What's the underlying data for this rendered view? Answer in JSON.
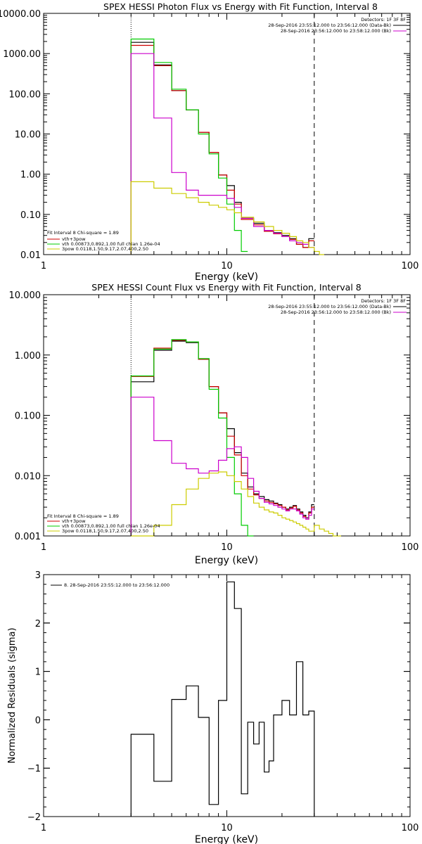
{
  "chart_data": [
    {
      "type": "line",
      "title": "SPEX HESSI Photon Flux vs Energy with Fit Function, Interval 8",
      "xlabel": "Energy (keV)",
      "ylabel": "",
      "xscale": "log",
      "yscale": "log",
      "xlim": [
        1,
        100
      ],
      "ylim": [
        0.01,
        10000
      ],
      "xticks": [
        {
          "v": 1,
          "label": "1"
        },
        {
          "v": 10,
          "label": "10"
        },
        {
          "v": 100,
          "label": "100"
        }
      ],
      "yticks": [
        {
          "v": 10000,
          "label": "10000.00"
        },
        {
          "v": 1000,
          "label": "1000.00"
        },
        {
          "v": 100,
          "label": "100.00"
        },
        {
          "v": 10,
          "label": "10.00"
        },
        {
          "v": 1,
          "label": "1.00"
        },
        {
          "v": 0.1,
          "label": "0.10"
        },
        {
          "v": 0.01,
          "label": "0.01"
        }
      ],
      "vlines": [
        {
          "x": 3,
          "style": "dotted"
        },
        {
          "x": 30,
          "style": "dashed"
        }
      ],
      "legend_topright": {
        "position": "top-right",
        "header": "Detectors: 1F 3F 8F",
        "entries": [
          {
            "text": "28-Sep-2016 23:55:12.000 to 23:56:12.000 (Data-Bk)",
            "color": "#000000"
          },
          {
            "text": "28-Sep-2016 23:56:12.000 to 23:58:12.000 (Bk)",
            "color": "#cc00cc"
          }
        ]
      },
      "legend_fit": {
        "position": "bottom-left",
        "header": "Fit Interval  8    Chi-square = 1.89",
        "entries": [
          {
            "text": "vth+3pow",
            "color": "#cc0000"
          },
          {
            "text": "vth 0.00873,0.892,1.00  full chian 1.26e-04",
            "color": "#00cc00"
          },
          {
            "text": "3pow 0.0118,1.50,9.17,2.07,400,2.50",
            "color": "#cccc00"
          }
        ]
      },
      "series": [
        {
          "color": "#000000",
          "edges": [
            3,
            3.5,
            4,
            4.5,
            5,
            5.5,
            6,
            6.5,
            7,
            7.5,
            8,
            8.5,
            9,
            9.5,
            10,
            10.5,
            11,
            11.5,
            12,
            13,
            14,
            15,
            16,
            17,
            18,
            19,
            20,
            21,
            22,
            23,
            24,
            25,
            26,
            27,
            28,
            29,
            30
          ],
          "values": [
            1900,
            1900,
            520,
            520,
            120,
            120,
            40,
            40,
            11,
            11,
            3.5,
            3.5,
            0.95,
            0.95,
            0.52,
            0.52,
            0.2,
            0.2,
            0.08,
            0.08,
            0.06,
            0.06,
            0.04,
            0.04,
            0.035,
            0.035,
            0.03,
            0.03,
            0.025,
            0.025,
            0.018,
            0.018,
            0.015,
            0.015,
            0.025,
            0.025
          ]
        },
        {
          "color": "#cc0000",
          "edges": [
            3,
            3.5,
            4,
            4.5,
            5,
            5.5,
            6,
            6.5,
            7,
            7.5,
            8,
            8.5,
            9,
            9.5,
            10,
            10.5,
            11,
            11.5,
            12,
            13,
            14,
            15,
            16,
            17,
            18,
            19,
            20,
            21,
            22,
            23,
            24,
            25,
            26,
            27,
            28,
            29,
            30
          ],
          "values": [
            1600,
            1600,
            500,
            500,
            120,
            120,
            40,
            40,
            11,
            11,
            3.5,
            3.5,
            0.95,
            0.95,
            0.4,
            0.4,
            0.18,
            0.18,
            0.075,
            0.075,
            0.055,
            0.055,
            0.038,
            0.038,
            0.033,
            0.033,
            0.028,
            0.028,
            0.024,
            0.024,
            0.018,
            0.018,
            0.015,
            0.015,
            0.022,
            0.022
          ]
        },
        {
          "color": "#00cc00",
          "edges": [
            3,
            3.5,
            4,
            4.5,
            5,
            5.5,
            6,
            6.5,
            7,
            7.5,
            8,
            8.5,
            9,
            9.5,
            10,
            10.5,
            11,
            11.5,
            12,
            13
          ],
          "values": [
            2300,
            2300,
            600,
            600,
            130,
            130,
            40,
            40,
            10,
            10,
            3.2,
            3.2,
            0.8,
            0.8,
            0.18,
            0.18,
            0.04,
            0.04,
            0.012
          ]
        },
        {
          "color": "#cc00cc",
          "edges": [
            3,
            3.5,
            4,
            4.5,
            5,
            5.5,
            6,
            6.5,
            7,
            7.5,
            8,
            8.5,
            9,
            9.5,
            10,
            10.5,
            11,
            11.5,
            12,
            13,
            14,
            15,
            16,
            17,
            18,
            19,
            20,
            21,
            22,
            23,
            24,
            25,
            26,
            27,
            28,
            29,
            30
          ],
          "values": [
            1000,
            1000,
            25,
            25,
            1.1,
            1.1,
            0.4,
            0.4,
            0.3,
            0.3,
            0.3,
            0.3,
            0.3,
            0.3,
            0.25,
            0.25,
            0.15,
            0.15,
            0.08,
            0.08,
            0.05,
            0.05,
            0.04,
            0.04,
            0.034,
            0.034,
            0.028,
            0.028,
            0.022,
            0.022,
            0.02,
            0.02,
            0.018,
            0.018,
            0.015,
            0.015
          ]
        },
        {
          "color": "#cccc00",
          "edges": [
            3,
            3.5,
            4,
            4.5,
            5,
            5.5,
            6,
            6.5,
            7,
            7.5,
            8,
            8.5,
            9,
            9.5,
            10,
            10.5,
            11,
            11.5,
            12,
            13,
            14,
            15,
            16,
            17,
            18,
            19,
            20,
            21,
            22,
            23,
            24,
            25,
            26,
            27,
            28,
            29,
            30,
            32,
            34
          ],
          "values": [
            0.65,
            0.65,
            0.45,
            0.45,
            0.33,
            0.33,
            0.26,
            0.26,
            0.2,
            0.2,
            0.17,
            0.17,
            0.15,
            0.15,
            0.13,
            0.13,
            0.11,
            0.11,
            0.085,
            0.085,
            0.065,
            0.065,
            0.05,
            0.05,
            0.04,
            0.04,
            0.034,
            0.034,
            0.028,
            0.028,
            0.022,
            0.022,
            0.02,
            0.02,
            0.015,
            0.015,
            0.012,
            0.01
          ]
        }
      ]
    },
    {
      "type": "line",
      "title": "SPEX HESSI Count Flux vs Energy with Fit Function, Interval 8",
      "xlabel": "Energy (keV)",
      "ylabel": "",
      "xscale": "log",
      "yscale": "log",
      "xlim": [
        1,
        100
      ],
      "ylim": [
        0.001,
        10
      ],
      "xticks": [
        {
          "v": 1,
          "label": "1"
        },
        {
          "v": 10,
          "label": "10"
        },
        {
          "v": 100,
          "label": "100"
        }
      ],
      "yticks": [
        {
          "v": 10,
          "label": "10.000"
        },
        {
          "v": 1,
          "label": "1.000"
        },
        {
          "v": 0.1,
          "label": "0.100"
        },
        {
          "v": 0.01,
          "label": "0.010"
        },
        {
          "v": 0.001,
          "label": "0.001"
        }
      ],
      "vlines": [
        {
          "x": 3,
          "style": "dotted"
        },
        {
          "x": 30,
          "style": "dashed"
        }
      ],
      "legend_topright": {
        "position": "top-right",
        "header": "Detectors: 1F 3F 8F",
        "entries": [
          {
            "text": "28-Sep-2016 23:55:12.000 to 23:56:12.000 (Data-Bk)",
            "color": "#000000"
          },
          {
            "text": "28-Sep-2016 23:56:12.000 to 23:58:12.000 (Bk)",
            "color": "#cc00cc"
          }
        ]
      },
      "legend_fit": {
        "position": "bottom-left",
        "header": "Fit Interval  8    Chi-square = 1.89",
        "entries": [
          {
            "text": "vth+3pow",
            "color": "#cc0000"
          },
          {
            "text": "vth 0.00873,0.892,1.00  full chian 1.26e-04",
            "color": "#00cc00"
          },
          {
            "text": "3pow 0.0118,1.50,9.17,2.07,400,2.50",
            "color": "#cccc00"
          }
        ]
      },
      "series": [
        {
          "color": "#000000",
          "edges": [
            3,
            4,
            5,
            6,
            7,
            8,
            9,
            10,
            11,
            12,
            13,
            14,
            15,
            16,
            17,
            18,
            19,
            20,
            21,
            22,
            23,
            24,
            25,
            26,
            27,
            28,
            29,
            30
          ],
          "values": [
            0.36,
            1.2,
            1.7,
            1.6,
            0.85,
            0.3,
            0.11,
            0.06,
            0.024,
            0.011,
            0.0065,
            0.005,
            0.0045,
            0.004,
            0.0038,
            0.0035,
            0.0033,
            0.003,
            0.0028,
            0.003,
            0.0032,
            0.0028,
            0.0025,
            0.0022,
            0.002,
            0.0025,
            0.0033
          ]
        },
        {
          "color": "#cc0000",
          "edges": [
            3,
            4,
            5,
            6,
            7,
            8,
            9,
            10,
            11,
            12,
            13,
            14,
            15,
            16,
            17,
            18,
            19,
            20,
            21,
            22,
            23,
            24,
            25,
            26,
            27,
            28,
            29,
            30
          ],
          "values": [
            0.44,
            1.3,
            1.75,
            1.65,
            0.85,
            0.3,
            0.11,
            0.045,
            0.022,
            0.01,
            0.006,
            0.0048,
            0.0042,
            0.0038,
            0.0036,
            0.0034,
            0.0032,
            0.003,
            0.0027,
            0.0029,
            0.0031,
            0.0027,
            0.0024,
            0.0021,
            0.0019,
            0.0024,
            0.003
          ]
        },
        {
          "color": "#00cc00",
          "edges": [
            3,
            4,
            5,
            6,
            7,
            8,
            9,
            10,
            11,
            12,
            13,
            14
          ],
          "values": [
            0.45,
            1.25,
            1.8,
            1.65,
            0.87,
            0.27,
            0.09,
            0.02,
            0.005,
            0.0015,
            0.001
          ]
        },
        {
          "color": "#cc00cc",
          "edges": [
            3,
            4,
            5,
            6,
            7,
            8,
            9,
            10,
            11,
            12,
            13,
            14,
            15,
            16,
            17,
            18,
            19,
            20,
            21,
            22,
            23,
            24,
            25,
            26,
            27,
            28,
            29,
            30
          ],
          "values": [
            0.2,
            0.038,
            0.016,
            0.013,
            0.011,
            0.012,
            0.018,
            0.028,
            0.03,
            0.02,
            0.009,
            0.0055,
            0.0042,
            0.0036,
            0.0034,
            0.0032,
            0.003,
            0.0028,
            0.0026,
            0.0028,
            0.0028,
            0.0026,
            0.0023,
            0.002,
            0.0019,
            0.0022,
            0.0028
          ]
        },
        {
          "color": "#cccc00",
          "edges": [
            3,
            4,
            5,
            6,
            7,
            8,
            9,
            10,
            11,
            12,
            13,
            14,
            15,
            16,
            17,
            18,
            19,
            20,
            21,
            22,
            23,
            24,
            25,
            26,
            27,
            28,
            29,
            30,
            32,
            34,
            36,
            38,
            40,
            42
          ],
          "values": [
            0.001,
            0.0015,
            0.0033,
            0.006,
            0.009,
            0.011,
            0.0115,
            0.01,
            0.008,
            0.006,
            0.0045,
            0.0035,
            0.003,
            0.0027,
            0.0025,
            0.0024,
            0.0022,
            0.002,
            0.0019,
            0.0018,
            0.0017,
            0.0016,
            0.0015,
            0.0014,
            0.0013,
            0.0012,
            0.0012,
            0.0015,
            0.0013,
            0.0012,
            0.0011,
            0.001,
            0.001
          ]
        }
      ]
    },
    {
      "type": "line",
      "title": "",
      "xlabel": "Energy (keV)",
      "ylabel": "Normalized Residuals (sigma)",
      "xscale": "log",
      "yscale": "linear",
      "xlim": [
        1,
        100
      ],
      "ylim": [
        -2,
        3
      ],
      "xticks": [
        {
          "v": 1,
          "label": "1"
        },
        {
          "v": 10,
          "label": "10"
        },
        {
          "v": 100,
          "label": "100"
        }
      ],
      "yticks": [
        {
          "v": 3,
          "label": "3"
        },
        {
          "v": 2,
          "label": "2"
        },
        {
          "v": 1,
          "label": "1"
        },
        {
          "v": 0,
          "label": "0"
        },
        {
          "v": -1,
          "label": "−1"
        },
        {
          "v": -2,
          "label": "−2"
        }
      ],
      "legend_topleft": {
        "position": "top-left",
        "entries": [
          {
            "text": "8. 28-Sep-2016 23:55:12.000 to 23:56:12.000",
            "color": "#000000"
          }
        ]
      },
      "series": [
        {
          "color": "#000000",
          "edges": [
            3,
            4,
            5,
            6,
            7,
            8,
            9,
            10,
            11,
            12,
            13,
            14,
            15,
            16,
            17,
            18,
            19,
            20,
            21,
            22,
            23,
            24,
            25,
            26,
            27,
            28,
            29,
            30
          ],
          "values": [
            -0.3,
            -1.27,
            0.42,
            0.7,
            0.05,
            -1.75,
            0.4,
            2.85,
            2.3,
            -1.53,
            -0.05,
            -0.5,
            -0.05,
            -1.08,
            -0.85,
            0.1,
            0.1,
            0.4,
            0.4,
            0.1,
            0.1,
            1.2,
            1.2,
            0.1,
            0.1,
            0.18,
            0.18
          ]
        }
      ]
    }
  ]
}
